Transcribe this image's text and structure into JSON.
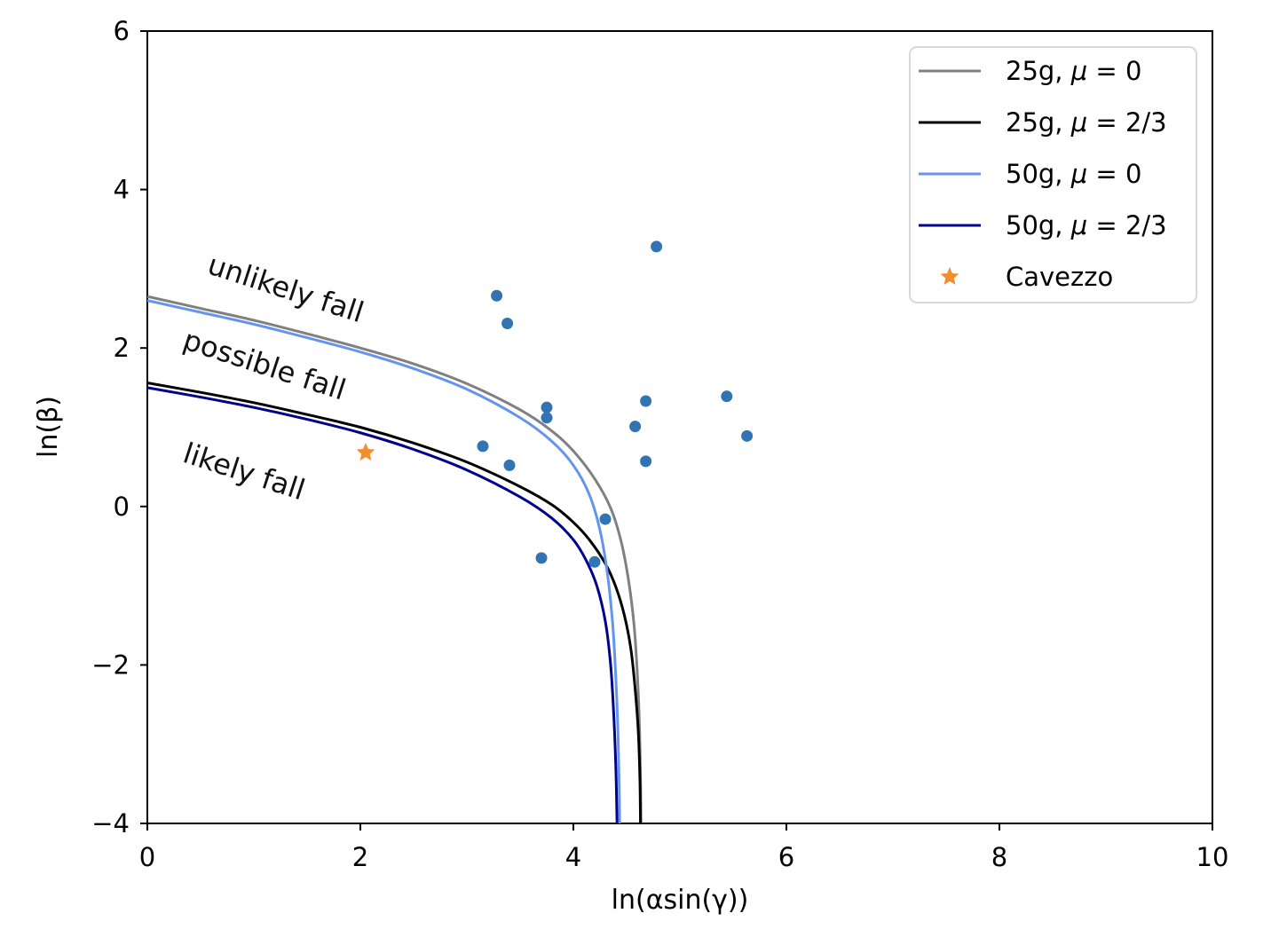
{
  "chart_data": {
    "type": "line",
    "title": "",
    "xlabel": "ln(αsin(γ))",
    "ylabel": "ln(β)",
    "xlim": [
      0,
      10
    ],
    "ylim": [
      -4,
      6
    ],
    "x_ticks": [
      0,
      2,
      4,
      6,
      8,
      10
    ],
    "y_ticks": [
      -4,
      -2,
      0,
      2,
      4,
      6
    ],
    "x_tick_labels": [
      "0",
      "2",
      "4",
      "6",
      "8",
      "10"
    ],
    "y_tick_labels": [
      "−4",
      "−2",
      "0",
      "2",
      "4",
      "6"
    ],
    "grid": false,
    "legend_position": "top-right",
    "series": [
      {
        "name": "25g, μ = 0",
        "legend_prefix": "25g, ",
        "legend_symbol": "μ",
        "legend_suffix": " = 0",
        "type": "line",
        "color": "#808080",
        "x": [
          0,
          0.5,
          1.0,
          1.5,
          2.0,
          2.5,
          3.0,
          3.5,
          3.8,
          4.0,
          4.2,
          4.35,
          4.45,
          4.52,
          4.57,
          4.6,
          4.62,
          4.63,
          4.635
        ],
        "y": [
          2.65,
          2.5,
          2.35,
          2.18,
          2.0,
          1.8,
          1.55,
          1.22,
          0.95,
          0.7,
          0.35,
          -0.02,
          -0.45,
          -0.95,
          -1.5,
          -2.1,
          -2.75,
          -3.4,
          -4.0
        ]
      },
      {
        "name": "25g, μ = 2/3",
        "legend_prefix": "25g, ",
        "legend_symbol": "μ",
        "legend_suffix": " = 2/3",
        "type": "line",
        "color": "#000000",
        "x": [
          0,
          0.5,
          1.0,
          1.5,
          2.0,
          2.5,
          3.0,
          3.5,
          3.8,
          4.0,
          4.15,
          4.3,
          4.4,
          4.48,
          4.54,
          4.58,
          4.61,
          4.625,
          4.63
        ],
        "y": [
          1.56,
          1.44,
          1.31,
          1.16,
          1.0,
          0.8,
          0.56,
          0.25,
          0.02,
          -0.2,
          -0.42,
          -0.72,
          -1.02,
          -1.38,
          -1.8,
          -2.3,
          -2.85,
          -3.45,
          -4.0
        ]
      },
      {
        "name": "50g, μ = 0",
        "legend_prefix": "50g, ",
        "legend_symbol": "μ",
        "legend_suffix": " = 0",
        "type": "line",
        "color": "#6495ed",
        "x": [
          0,
          0.5,
          1.0,
          1.5,
          2.0,
          2.5,
          3.0,
          3.5,
          3.8,
          4.0,
          4.15,
          4.25,
          4.32,
          4.37,
          4.4,
          4.42,
          4.43,
          4.435
        ],
        "y": [
          2.6,
          2.45,
          2.3,
          2.13,
          1.95,
          1.74,
          1.48,
          1.12,
          0.82,
          0.52,
          0.15,
          -0.3,
          -0.85,
          -1.5,
          -2.2,
          -2.9,
          -3.5,
          -4.0
        ]
      },
      {
        "name": "50g, μ = 2/3",
        "legend_prefix": "50g, ",
        "legend_symbol": "μ",
        "legend_suffix": " = 2/3",
        "type": "line",
        "color": "#00008b",
        "x": [
          0,
          0.5,
          1.0,
          1.5,
          2.0,
          2.5,
          3.0,
          3.5,
          3.8,
          4.0,
          4.12,
          4.22,
          4.3,
          4.35,
          4.38,
          4.4,
          4.41
        ],
        "y": [
          1.5,
          1.38,
          1.25,
          1.1,
          0.93,
          0.72,
          0.46,
          0.12,
          -0.15,
          -0.42,
          -0.68,
          -1.0,
          -1.45,
          -2.0,
          -2.65,
          -3.35,
          -4.0
        ]
      },
      {
        "name": "Cavezzo",
        "type": "scatter",
        "marker": "star",
        "color": "#f28e2b",
        "x": [
          2.05
        ],
        "y": [
          0.68
        ]
      },
      {
        "type": "scatter",
        "marker": "dot",
        "color": "#3274b3",
        "x": [
          4.78,
          3.28,
          3.38,
          3.75,
          3.75,
          4.68,
          5.44,
          4.58,
          5.63,
          3.15,
          3.4,
          4.68,
          4.3,
          3.7,
          4.2
        ],
        "y": [
          3.28,
          2.66,
          2.31,
          1.25,
          1.12,
          1.33,
          1.39,
          1.01,
          0.89,
          0.76,
          0.52,
          0.57,
          -0.16,
          -0.65,
          -0.7
        ]
      }
    ],
    "annotations": [
      {
        "text": "unlikely fall",
        "x": 0.55,
        "y": 2.95,
        "rotation": 18
      },
      {
        "text": "possible fall",
        "x": 0.32,
        "y": 2.0,
        "rotation": 18
      },
      {
        "text": "likely fall",
        "x": 0.32,
        "y": 0.57,
        "rotation": 18
      }
    ]
  }
}
